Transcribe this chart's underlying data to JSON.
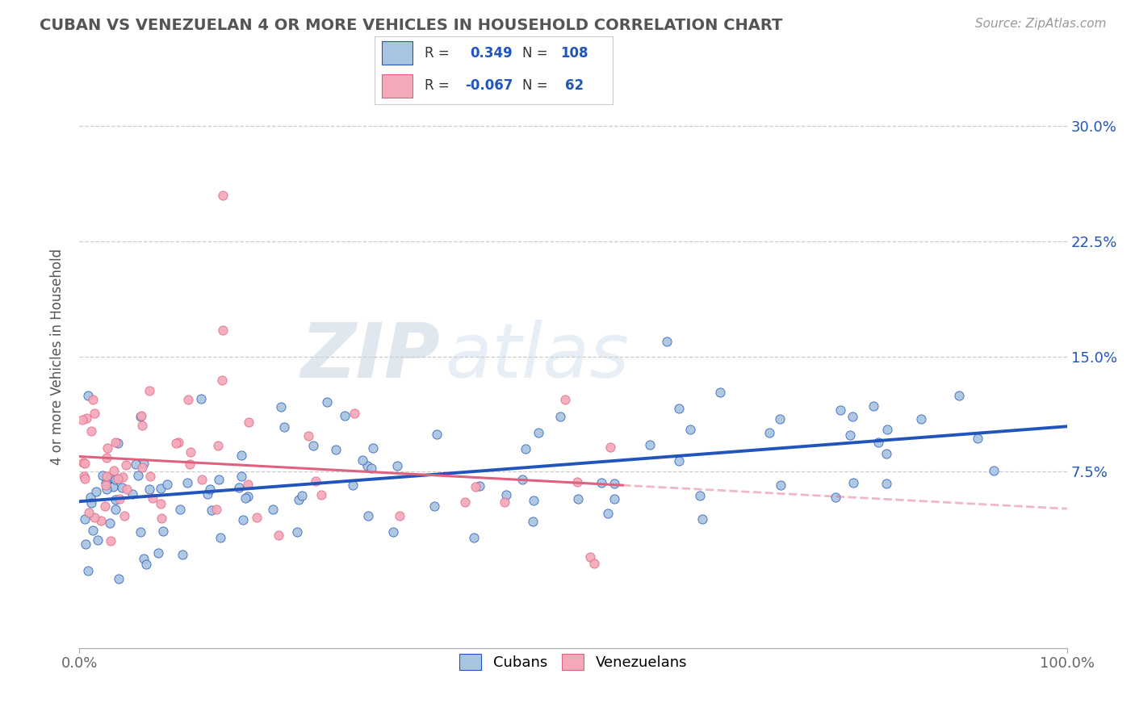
{
  "title": "CUBAN VS VENEZUELAN 4 OR MORE VEHICLES IN HOUSEHOLD CORRELATION CHART",
  "source": "Source: ZipAtlas.com",
  "ylabel": "4 or more Vehicles in Household",
  "xlim": [
    0,
    100
  ],
  "ylim": [
    -4,
    34
  ],
  "yticks": [
    7.5,
    15.0,
    22.5,
    30.0
  ],
  "yticklabels": [
    "7.5%",
    "15.0%",
    "22.5%",
    "30.0%"
  ],
  "r_cuban": 0.349,
  "n_cuban": 108,
  "r_venezuelan": -0.067,
  "n_venezuelan": 62,
  "color_cuban": "#a8c4e0",
  "color_venezuelan": "#f4a8b8",
  "line_color_cuban": "#2255bb",
  "line_color_venezuelan": "#e06080",
  "watermark_zip": "ZIP",
  "watermark_atlas": "atlas",
  "background_color": "#ffffff",
  "title_color": "#555555",
  "seed_cuban": 42,
  "seed_venezuelan": 77
}
